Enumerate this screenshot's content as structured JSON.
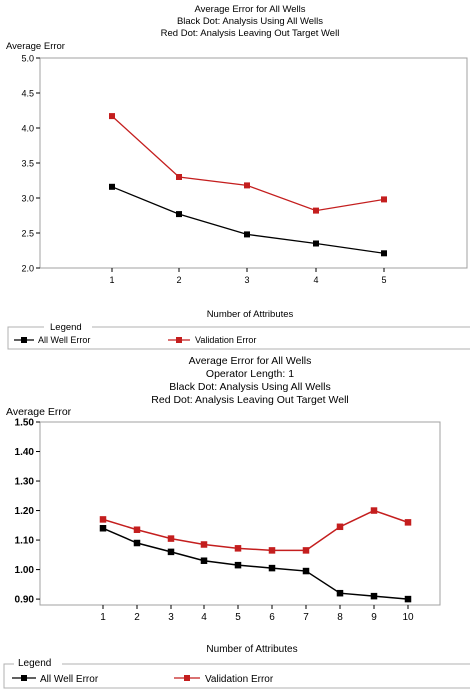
{
  "chart_data": [
    {
      "type": "line",
      "title_lines": [
        "Average Error for All Wells",
        "Black Dot: Analysis Using All Wells",
        "Red Dot: Analysis Leaving Out Target Well"
      ],
      "ylabel": "Average Error",
      "xlabel": "Number of Attributes",
      "x": [
        1,
        2,
        3,
        4,
        5
      ],
      "ylim": [
        2.0,
        5.0
      ],
      "yticks": [
        "2.0",
        "2.5",
        "3.0",
        "3.5",
        "4.0",
        "4.5",
        "5.0"
      ],
      "xticks": [
        "1",
        "2",
        "3",
        "4",
        "5"
      ],
      "series": [
        {
          "name": "All Well Error",
          "color": "#000000",
          "values": [
            3.16,
            2.77,
            2.48,
            2.35,
            2.21
          ]
        },
        {
          "name": "Validation Error",
          "color": "#c41e1e",
          "values": [
            4.17,
            3.3,
            3.18,
            2.82,
            2.98
          ]
        }
      ],
      "legend": {
        "title": "Legend",
        "placement": "bottom"
      }
    },
    {
      "type": "line",
      "title_lines": [
        "Average Error for All Wells",
        "Operator Length: 1",
        "Black Dot: Analysis Using All Wells",
        "Red Dot: Analysis Leaving Out Target Well"
      ],
      "ylabel": "Average Error",
      "xlabel": "Number of Attributes",
      "x": [
        1,
        2,
        3,
        4,
        5,
        6,
        7,
        8,
        9,
        10
      ],
      "ylim": [
        0.88,
        1.5
      ],
      "yticks": [
        "0.90",
        "1.00",
        "1.10",
        "1.20",
        "1.30",
        "1.40",
        "1.50"
      ],
      "xticks": [
        "1",
        "2",
        "3",
        "4",
        "5",
        "6",
        "7",
        "8",
        "9",
        "10"
      ],
      "series": [
        {
          "name": "All Well Error",
          "color": "#000000",
          "values": [
            1.14,
            1.09,
            1.06,
            1.03,
            1.015,
            1.005,
            0.995,
            0.92,
            0.91,
            0.9
          ]
        },
        {
          "name": "Validation Error",
          "color": "#c41e1e",
          "values": [
            1.17,
            1.135,
            1.105,
            1.085,
            1.072,
            1.065,
            1.065,
            1.145,
            1.2,
            1.16
          ]
        }
      ],
      "legend": {
        "title": "Legend",
        "placement": "bottom"
      }
    }
  ]
}
